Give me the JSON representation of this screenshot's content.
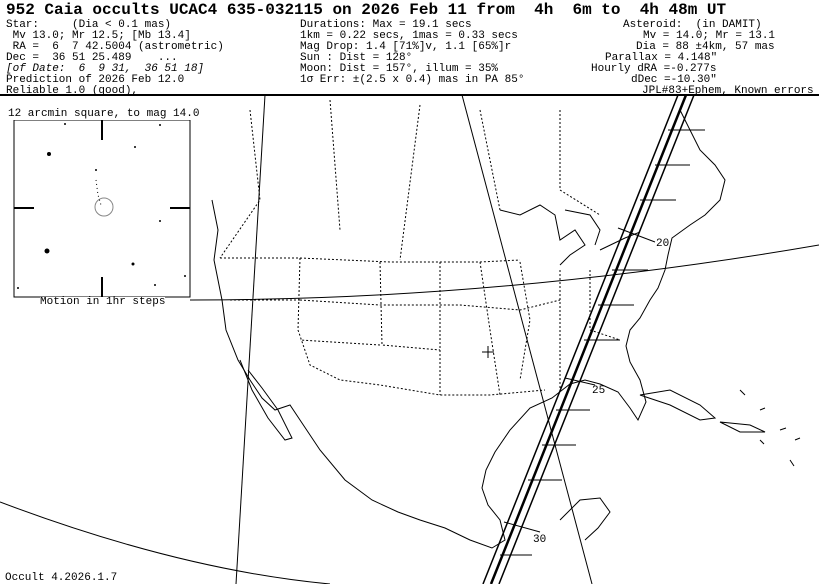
{
  "title": "952 Caia occults UCAC4 635-032115 on 2026 Feb 11 from  4h  6m to  4h 48m UT",
  "star": {
    "lines": [
      "Star:     (Dia < 0.1 mas)",
      " Mv 13.0; Mr 12.5; [Mb 13.4]",
      " RA =  6  7 42.5004 (astrometric)",
      "Dec =  36 51 25.489    ...",
      "Prediction of 2026 Feb 12.0",
      "Reliable 1.0 (good),"
    ],
    "of_date": "[of Date:  6  9 31,  36 51 18]"
  },
  "event": {
    "lines": [
      "Durations: Max = 19.1 secs",
      "1km = 0.22 secs, 1mas = 0.33 secs",
      "Mag Drop: 1.4 [71%]v, 1.1 [65%]r",
      "Sun : Dist = 128°",
      "Moon: Dist = 157°, illum = 35%",
      "1σ Err: ±(2.5 x 0.4) mas in PA 85°"
    ]
  },
  "asteroid": {
    "lines": [
      "Asteroid:  (in DAMIT)",
      "Mv = 14.0; Mr = 13.1",
      "Dia = 88 ±4km, 57 mas",
      "Parallax = 4.148\"",
      "Hourly dRA =-0.277s",
      "dDec =-10.30\"",
      "JPL#83+Ephem, Known errors"
    ]
  },
  "finder": {
    "label": "12 arcmin square, to mag 14.0",
    "motion": "Motion in 1hr steps"
  },
  "path_ticks": [
    "20",
    "25",
    "30"
  ],
  "footer": "Occult 4.2026.1.7",
  "colors": {
    "ink": "#000000",
    "background": "#ffffff"
  }
}
